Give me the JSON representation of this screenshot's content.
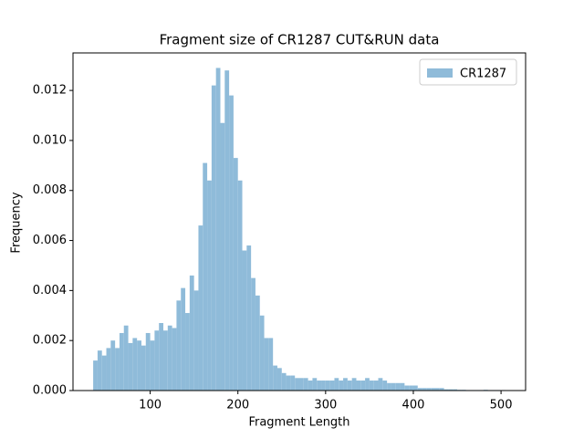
{
  "chart_data": {
    "type": "histogram",
    "title": "Fragment size of CR1287 CUT&RUN data",
    "xlabel": "Fragment Length",
    "ylabel": "Frequency",
    "bins": [
      35,
      40,
      45,
      50,
      55,
      60,
      65,
      70,
      75,
      80,
      85,
      90,
      95,
      100,
      105,
      110,
      115,
      120,
      125,
      130,
      135,
      140,
      145,
      150,
      155,
      160,
      165,
      170,
      175,
      180,
      185,
      190,
      195,
      200,
      205,
      210,
      215,
      220,
      225,
      230,
      235,
      240,
      245,
      250,
      255,
      260,
      265,
      270,
      275,
      280,
      285,
      290,
      295,
      300,
      305,
      310,
      315,
      320,
      325,
      330,
      335,
      340,
      345,
      350,
      355,
      360,
      365,
      370,
      375,
      380,
      385,
      390,
      395,
      400,
      405,
      410,
      415,
      420,
      425,
      430,
      435,
      440,
      445,
      450,
      455,
      460,
      465,
      470,
      475,
      480,
      485,
      490,
      495,
      500,
      505
    ],
    "series": [
      {
        "name": "CR1287",
        "color": "#8fbbd9",
        "values": [
          0.0012,
          0.0016,
          0.0014,
          0.0017,
          0.002,
          0.0017,
          0.0023,
          0.0026,
          0.0019,
          0.0021,
          0.002,
          0.0018,
          0.0023,
          0.002,
          0.0024,
          0.0027,
          0.0024,
          0.0026,
          0.0025,
          0.0036,
          0.0041,
          0.0031,
          0.0046,
          0.004,
          0.0066,
          0.0091,
          0.0084,
          0.0122,
          0.0129,
          0.0107,
          0.0128,
          0.0118,
          0.0093,
          0.0084,
          0.0056,
          0.0058,
          0.0045,
          0.0038,
          0.003,
          0.0021,
          0.0021,
          0.001,
          0.0009,
          0.0007,
          0.0006,
          0.0006,
          0.0005,
          0.0005,
          0.0005,
          0.0004,
          0.0005,
          0.0004,
          0.0004,
          0.0004,
          0.0004,
          0.0005,
          0.0004,
          0.0005,
          0.0004,
          0.0005,
          0.0004,
          0.0004,
          0.0005,
          0.0004,
          0.0004,
          0.0005,
          0.0004,
          0.0003,
          0.0003,
          0.0003,
          0.0003,
          0.0002,
          0.0002,
          0.0002,
          0.0001,
          0.0001,
          0.0001,
          0.0001,
          0.0001,
          0.0001,
          5e-05,
          5e-05,
          5e-05,
          3e-05,
          3e-05,
          2e-05,
          2e-05,
          2e-05,
          2e-05,
          3e-05,
          2e-05,
          2e-05,
          2e-05,
          2e-05
        ]
      }
    ],
    "xlim": [
      12,
      528
    ],
    "xticks": [
      100,
      200,
      300,
      400,
      500
    ],
    "ylim": [
      0,
      0.0135
    ],
    "yticks": [
      {
        "value": 0,
        "label": "0.000"
      },
      {
        "value": 0.002,
        "label": "0.002"
      },
      {
        "value": 0.004,
        "label": "0.004"
      },
      {
        "value": 0.006,
        "label": "0.006"
      },
      {
        "value": 0.008,
        "label": "0.008"
      },
      {
        "value": 0.01,
        "label": "0.010"
      },
      {
        "value": 0.012,
        "label": "0.012"
      }
    ],
    "legend": "upper right",
    "grid": false
  }
}
